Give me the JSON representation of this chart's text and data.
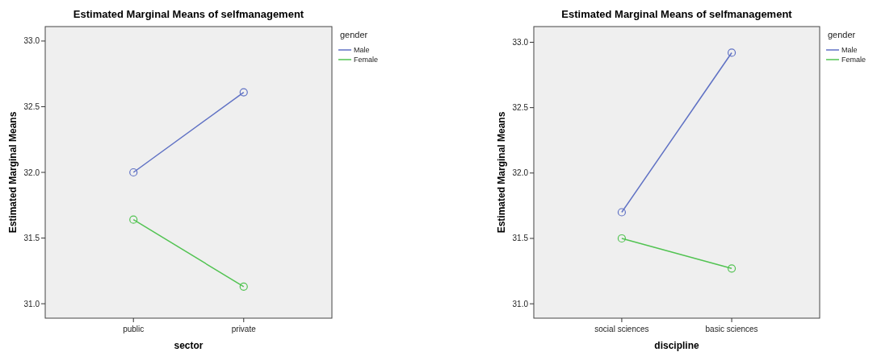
{
  "chart_data": [
    {
      "type": "line",
      "title": "Estimated Marginal Means of selfmanagement",
      "xlabel": "sector",
      "ylabel": "Estimated Marginal Means",
      "legend_title": "gender",
      "categories": [
        "public",
        "private"
      ],
      "series": [
        {
          "name": "Male",
          "color": "#5f71c4",
          "values": [
            32.0,
            32.61
          ]
        },
        {
          "name": "Female",
          "color": "#52c352",
          "values": [
            31.64,
            31.13
          ]
        }
      ],
      "ylim": [
        30.89,
        33.11
      ],
      "yticks": [
        {
          "value": 31,
          "label": "31.0"
        },
        {
          "value": 31.5,
          "label": "31.5"
        },
        {
          "value": 32,
          "label": "32.0"
        },
        {
          "value": 32.5,
          "label": "32.5"
        },
        {
          "value": 33,
          "label": "33.0"
        }
      ],
      "legend": "top right",
      "marker": "circle",
      "line_style": "solid"
    },
    {
      "type": "line",
      "title": "Estimated Marginal Means of selfmanagement",
      "xlabel": "discipline",
      "ylabel": "Estimated Marginal Means",
      "legend_title": "gender",
      "categories": [
        "social sciences",
        "basic sciences"
      ],
      "series": [
        {
          "name": "Male",
          "color": "#5f71c4",
          "values": [
            31.7,
            32.92
          ]
        },
        {
          "name": "Female",
          "color": "#52c352",
          "values": [
            31.5,
            31.27
          ]
        }
      ],
      "ylim": [
        30.89,
        33.12
      ],
      "yticks": [
        {
          "value": 31,
          "label": "31.0"
        },
        {
          "value": 31.5,
          "label": "31.5"
        },
        {
          "value": 32,
          "label": "32.0"
        },
        {
          "value": 32.5,
          "label": "32.5"
        },
        {
          "value": 33,
          "label": "33.0"
        }
      ],
      "legend": "top right",
      "marker": "circle",
      "line_style": "solid"
    }
  ]
}
